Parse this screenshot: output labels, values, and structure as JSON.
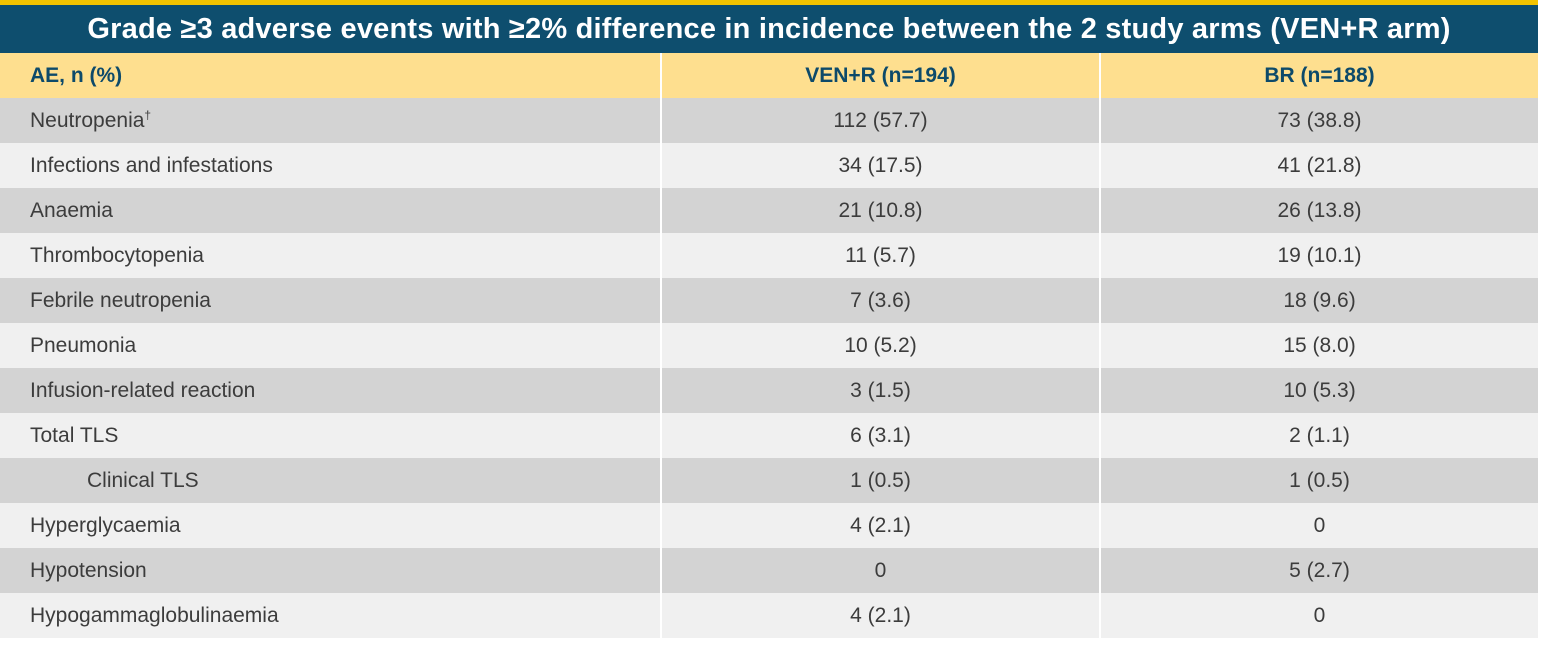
{
  "title": "Grade ≥3 adverse events with ≥2% difference in incidence between the 2 study arms (VEN+R arm)",
  "header": {
    "col1": "AE, n (%)",
    "col2": "VEN+R (n=194)",
    "col3": "BR (n=188)"
  },
  "rows": [
    {
      "label": "Neutropenia",
      "sup": "†",
      "venr": "112 (57.7)",
      "br": "73 (38.8)"
    },
    {
      "label": "Infections and infestations",
      "sup": "",
      "venr": "34 (17.5)",
      "br": "41 (21.8)"
    },
    {
      "label": "Anaemia",
      "sup": "",
      "venr": "21 (10.8)",
      "br": "26 (13.8)"
    },
    {
      "label": "Thrombocytopenia",
      "sup": "",
      "venr": "11 (5.7)",
      "br": "19 (10.1)"
    },
    {
      "label": "Febrile neutropenia",
      "sup": "",
      "venr": "7 (3.6)",
      "br": "18 (9.6)"
    },
    {
      "label": "Pneumonia",
      "sup": "",
      "venr": "10 (5.2)",
      "br": "15 (8.0)"
    },
    {
      "label": "Infusion-related reaction",
      "sup": "",
      "venr": "3 (1.5)",
      "br": "10 (5.3)"
    },
    {
      "label": "Total TLS",
      "sup": "",
      "venr": "6 (3.1)",
      "br": "2 (1.1)"
    },
    {
      "label": "Clinical TLS",
      "sup": "",
      "venr": "1 (0.5)",
      "br": "1 (0.5)",
      "indent": true
    },
    {
      "label": "Hyperglycaemia",
      "sup": "",
      "venr": "4 (2.1)",
      "br": "0"
    },
    {
      "label": "Hypotension",
      "sup": "",
      "venr": "0",
      "br": "5 (2.7)"
    },
    {
      "label": "Hypogammaglobulinaemia",
      "sup": "",
      "venr": "4 (2.1)",
      "br": "0"
    }
  ],
  "colors": {
    "title_bg": "#0e4e6e",
    "accent_line": "#f2c300",
    "header_bg": "#fedf8f",
    "header_text": "#0d4a6a",
    "row_dark": "#d3d3d3",
    "row_light": "#f0f0f0"
  }
}
